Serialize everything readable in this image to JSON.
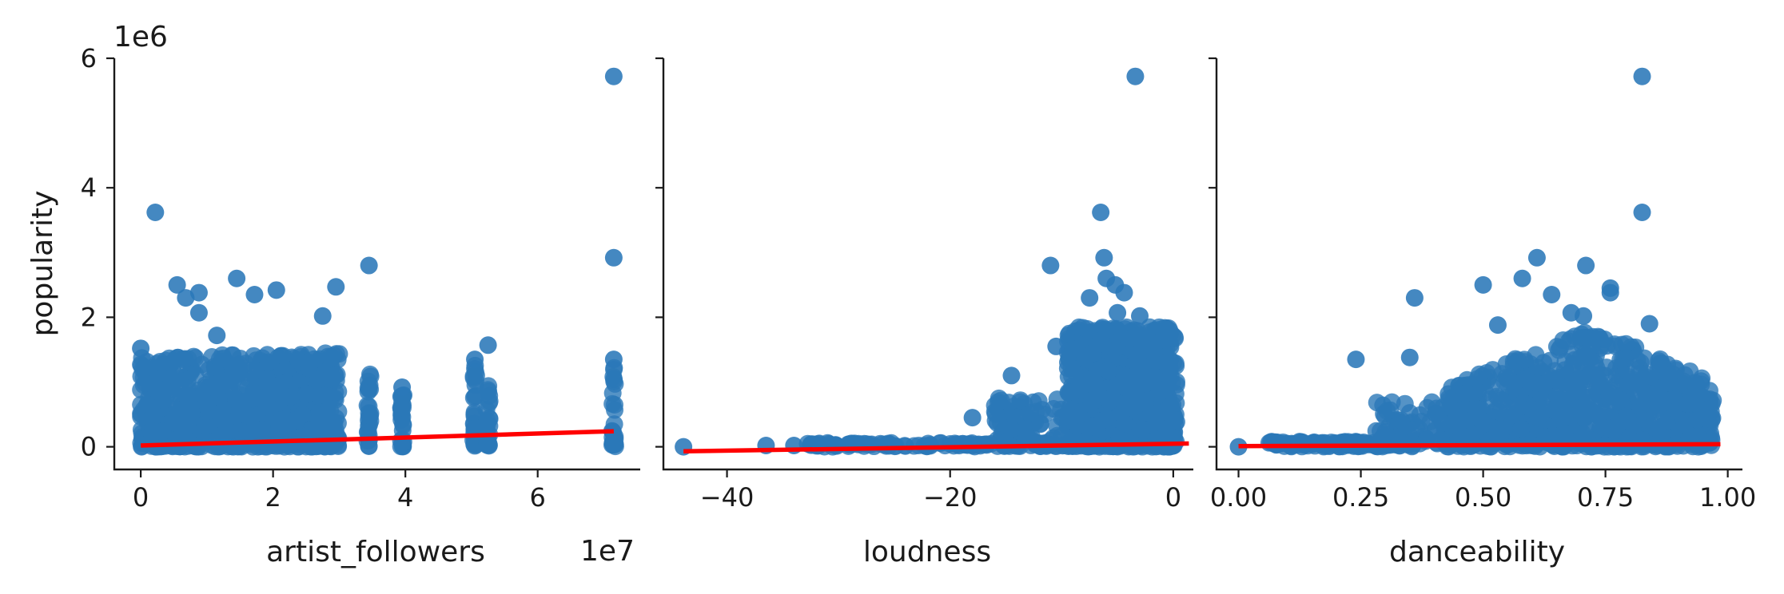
{
  "chart_data": [
    {
      "type": "scatter",
      "ylabel": "popularity",
      "xlabel": "artist_followers",
      "y_offset_label": "1e6",
      "x_offset_label": "1e7",
      "xlim": [
        -0.4,
        7.55
      ],
      "ylim": [
        -0.35,
        6.0
      ],
      "xticks": [
        0,
        2,
        4,
        6
      ],
      "xtick_labels": [
        "0",
        "2",
        "4",
        "6"
      ],
      "yticks": [
        0,
        2,
        4,
        6
      ],
      "ytick_labels": [
        "0",
        "2",
        "4",
        "6"
      ],
      "regression_line": {
        "x": [
          0,
          7.15
        ],
        "y": [
          0.02,
          0.24
        ]
      },
      "highlighted_points": [
        {
          "x": 7.15,
          "y": 5.72
        },
        {
          "x": 0.22,
          "y": 3.62
        },
        {
          "x": 7.15,
          "y": 2.92
        },
        {
          "x": 3.45,
          "y": 2.8
        },
        {
          "x": 1.45,
          "y": 2.6
        },
        {
          "x": 0.55,
          "y": 2.5
        },
        {
          "x": 2.95,
          "y": 2.47
        },
        {
          "x": 2.05,
          "y": 2.42
        },
        {
          "x": 0.88,
          "y": 2.38
        },
        {
          "x": 1.72,
          "y": 2.35
        },
        {
          "x": 0.68,
          "y": 2.3
        },
        {
          "x": 0.88,
          "y": 2.07
        },
        {
          "x": 2.75,
          "y": 2.02
        },
        {
          "x": 1.15,
          "y": 1.72
        },
        {
          "x": 5.25,
          "y": 1.57
        },
        {
          "x": 0.0,
          "y": 1.52
        },
        {
          "x": 3.95,
          "y": 0.92
        },
        {
          "x": 5.05,
          "y": 1.35
        },
        {
          "x": 7.15,
          "y": 1.35
        }
      ],
      "point_color": "#2a78b8",
      "line_color": "#ff0000",
      "grid": false
    },
    {
      "type": "scatter",
      "xlabel": "loudness",
      "xlim": [
        -45.7,
        1.8
      ],
      "ylim": [
        -0.35,
        6.0
      ],
      "xticks": [
        -40,
        -20,
        0
      ],
      "xtick_labels": [
        "−40",
        "−20",
        "0"
      ],
      "regression_line": {
        "x": [
          -43.9,
          1.4
        ],
        "y": [
          -0.07,
          0.05
        ]
      },
      "highlighted_points": [
        {
          "x": -3.4,
          "y": 5.72
        },
        {
          "x": -6.5,
          "y": 3.62
        },
        {
          "x": -6.2,
          "y": 2.92
        },
        {
          "x": -11.0,
          "y": 2.8
        },
        {
          "x": -6.0,
          "y": 2.6
        },
        {
          "x": -5.2,
          "y": 2.5
        },
        {
          "x": -4.4,
          "y": 2.38
        },
        {
          "x": -7.5,
          "y": 2.3
        },
        {
          "x": -5.0,
          "y": 2.07
        },
        {
          "x": -3.0,
          "y": 2.02
        },
        {
          "x": -10.5,
          "y": 1.55
        },
        {
          "x": -14.5,
          "y": 1.1
        },
        {
          "x": -18.0,
          "y": 0.45
        },
        {
          "x": -43.9,
          "y": 0.0
        },
        {
          "x": -36.5,
          "y": 0.02
        },
        {
          "x": -34.0,
          "y": 0.02
        }
      ],
      "point_color": "#2a78b8",
      "line_color": "#ff0000",
      "grid": false
    },
    {
      "type": "scatter",
      "xlabel": "danceability",
      "xlim": [
        -0.045,
        1.03
      ],
      "ylim": [
        -0.35,
        6.0
      ],
      "xticks": [
        0.0,
        0.25,
        0.5,
        0.75,
        1.0
      ],
      "xtick_labels": [
        "0.00",
        "0.25",
        "0.50",
        "0.75",
        "1.00"
      ],
      "regression_line": {
        "x": [
          0.0,
          0.985
        ],
        "y": [
          0.01,
          0.04
        ]
      },
      "highlighted_points": [
        {
          "x": 0.825,
          "y": 5.72
        },
        {
          "x": 0.825,
          "y": 3.62
        },
        {
          "x": 0.61,
          "y": 2.92
        },
        {
          "x": 0.71,
          "y": 2.8
        },
        {
          "x": 0.58,
          "y": 2.6
        },
        {
          "x": 0.5,
          "y": 2.5
        },
        {
          "x": 0.76,
          "y": 2.45
        },
        {
          "x": 0.76,
          "y": 2.38
        },
        {
          "x": 0.36,
          "y": 2.3
        },
        {
          "x": 0.64,
          "y": 2.35
        },
        {
          "x": 0.68,
          "y": 2.07
        },
        {
          "x": 0.705,
          "y": 2.02
        },
        {
          "x": 0.84,
          "y": 1.9
        },
        {
          "x": 0.53,
          "y": 1.88
        },
        {
          "x": 0.35,
          "y": 1.38
        },
        {
          "x": 0.24,
          "y": 1.35
        },
        {
          "x": 0.0,
          "y": 0.0
        }
      ],
      "point_color": "#2a78b8",
      "line_color": "#ff0000",
      "grid": false
    }
  ]
}
